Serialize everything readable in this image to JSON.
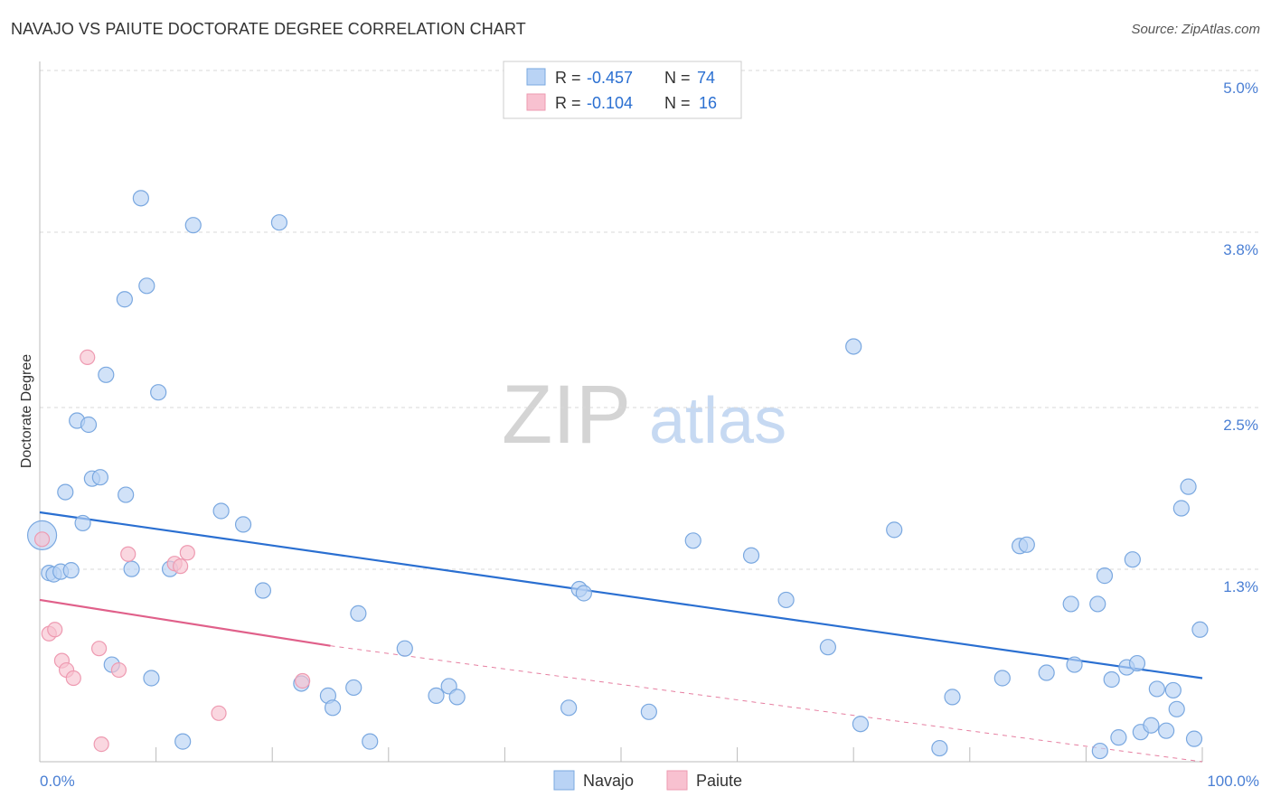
{
  "title": "NAVAJO VS PAIUTE DOCTORATE DEGREE CORRELATION CHART",
  "source": "Source: ZipAtlas.com",
  "watermark": {
    "zip": "ZIP",
    "atlas": "atlas"
  },
  "colors": {
    "navajo_fill": "#b9d3f5",
    "navajo_stroke": "#7aa8e0",
    "navajo_line": "#2a6fd1",
    "paiute_fill": "#f8c1d0",
    "paiute_stroke": "#ee9ab1",
    "paiute_line": "#e0608a",
    "tick_label": "#4a7fd4",
    "grid": "#d8d8d8"
  },
  "chart_data": {
    "type": "scatter",
    "title": "NAVAJO VS PAIUTE DOCTORATE DEGREE CORRELATION CHART",
    "xlabel": "",
    "ylabel": "Doctorate Degree",
    "xlim": [
      0,
      100
    ],
    "ylim": [
      0,
      5.2
    ],
    "x_tick_labels": [
      {
        "value": 0,
        "label": "0.0%"
      },
      {
        "value": 100,
        "label": "100.0%"
      }
    ],
    "y_ticks": [
      {
        "value": 1.3,
        "label": "1.3%"
      },
      {
        "value": 2.5,
        "label": "2.5%"
      },
      {
        "value": 3.8,
        "label": "3.8%"
      },
      {
        "value": 5.0,
        "label": "5.0%"
      }
    ],
    "y_grid": [
      1.3,
      2.5,
      3.8,
      5.0
    ],
    "legend_position": "top-center",
    "bottom_legend": [
      "Navajo",
      "Paiute"
    ],
    "series": [
      {
        "name": "Navajo",
        "R": "-0.457",
        "N": "74",
        "regression": {
          "x_start": 0,
          "y_start": 1.85,
          "x_end": 100,
          "y_end": 0.62
        },
        "points": [
          [
            0.2,
            1.68
          ],
          [
            0.8,
            1.4
          ],
          [
            1.2,
            1.39
          ],
          [
            1.8,
            1.41
          ],
          [
            2.2,
            2.0
          ],
          [
            2.7,
            1.42
          ],
          [
            3.2,
            2.53
          ],
          [
            3.7,
            1.77
          ],
          [
            4.2,
            2.5
          ],
          [
            4.5,
            2.1
          ],
          [
            5.2,
            2.11
          ],
          [
            5.7,
            2.87
          ],
          [
            6.2,
            0.72
          ],
          [
            7.3,
            3.43
          ],
          [
            7.4,
            1.98
          ],
          [
            7.9,
            1.43
          ],
          [
            8.7,
            4.18
          ],
          [
            9.2,
            3.53
          ],
          [
            9.6,
            0.62
          ],
          [
            10.2,
            2.74
          ],
          [
            11.2,
            1.43
          ],
          [
            12.3,
            0.15
          ],
          [
            13.2,
            3.98
          ],
          [
            15.6,
            1.86
          ],
          [
            17.5,
            1.76
          ],
          [
            19.2,
            1.27
          ],
          [
            20.6,
            4.0
          ],
          [
            22.5,
            0.58
          ],
          [
            24.8,
            0.49
          ],
          [
            25.2,
            0.4
          ],
          [
            27.0,
            0.55
          ],
          [
            27.4,
            1.1
          ],
          [
            28.4,
            0.15
          ],
          [
            31.4,
            0.84
          ],
          [
            34.1,
            0.49
          ],
          [
            35.2,
            0.56
          ],
          [
            35.9,
            0.48
          ],
          [
            45.5,
            0.4
          ],
          [
            46.4,
            1.28
          ],
          [
            46.8,
            1.25
          ],
          [
            52.4,
            0.37
          ],
          [
            56.2,
            1.64
          ],
          [
            61.2,
            1.53
          ],
          [
            64.2,
            1.2
          ],
          [
            67.8,
            0.85
          ],
          [
            70.0,
            3.08
          ],
          [
            70.6,
            0.28
          ],
          [
            73.5,
            1.72
          ],
          [
            77.4,
            0.1
          ],
          [
            78.5,
            0.48
          ],
          [
            82.8,
            0.62
          ],
          [
            84.3,
            1.6
          ],
          [
            84.9,
            1.61
          ],
          [
            86.6,
            0.66
          ],
          [
            88.7,
            1.17
          ],
          [
            89.0,
            0.72
          ],
          [
            91.0,
            1.17
          ],
          [
            91.2,
            0.08
          ],
          [
            91.6,
            1.38
          ],
          [
            92.2,
            0.61
          ],
          [
            92.8,
            0.18
          ],
          [
            93.5,
            0.7
          ],
          [
            94.0,
            1.5
          ],
          [
            94.4,
            0.73
          ],
          [
            94.7,
            0.22
          ],
          [
            95.6,
            0.27
          ],
          [
            96.1,
            0.54
          ],
          [
            96.9,
            0.23
          ],
          [
            97.5,
            0.53
          ],
          [
            97.8,
            0.39
          ],
          [
            98.2,
            1.88
          ],
          [
            98.8,
            2.04
          ],
          [
            99.3,
            0.17
          ],
          [
            99.8,
            0.98
          ]
        ]
      },
      {
        "name": "Paiute",
        "R": "-0.104",
        "N": "16",
        "regression": {
          "x_start": 0,
          "y_start": 1.2,
          "x_end": 25,
          "y_end": 0.86,
          "dashed_to_x": 100,
          "dashed_to_y": 0.0
        },
        "points": [
          [
            0.2,
            1.65
          ],
          [
            0.8,
            0.95
          ],
          [
            1.3,
            0.98
          ],
          [
            1.9,
            0.75
          ],
          [
            2.3,
            0.68
          ],
          [
            2.9,
            0.62
          ],
          [
            4.1,
            3.0
          ],
          [
            5.1,
            0.84
          ],
          [
            5.3,
            0.13
          ],
          [
            6.8,
            0.68
          ],
          [
            7.6,
            1.54
          ],
          [
            11.6,
            1.47
          ],
          [
            12.1,
            1.45
          ],
          [
            12.7,
            1.55
          ],
          [
            15.4,
            0.36
          ],
          [
            22.6,
            0.6
          ]
        ]
      }
    ]
  }
}
